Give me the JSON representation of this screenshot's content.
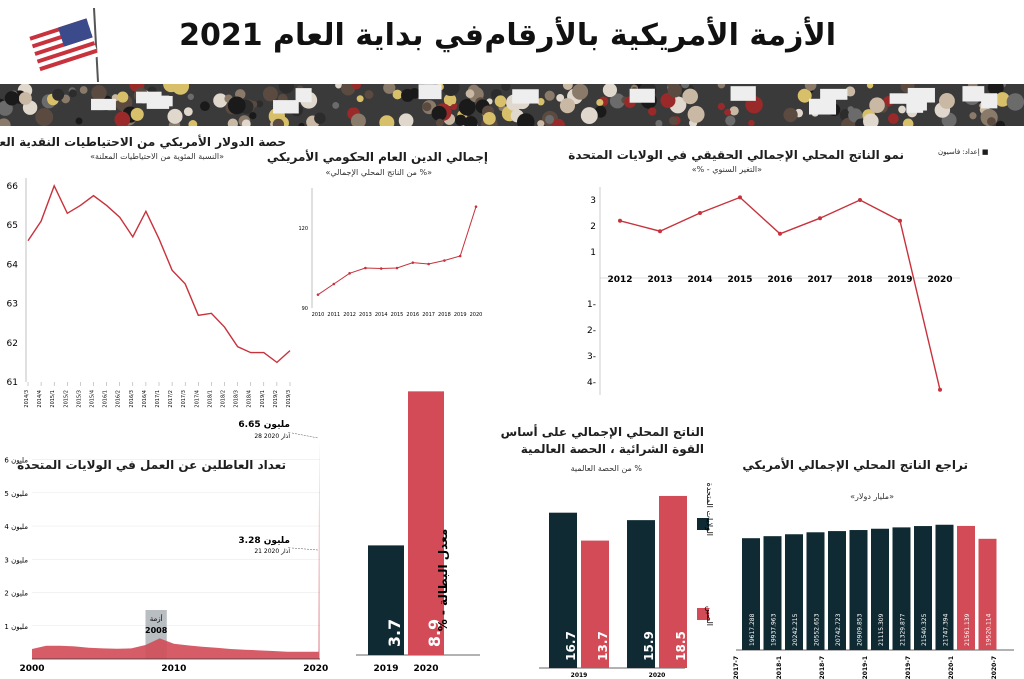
{
  "header": {
    "title_left": "في بداية العام 2021",
    "title_right": "الأزمة الأمريكية بالأرقام",
    "credit": "إعداد: فاسيون"
  },
  "charts": {
    "dollar_reserves": {
      "title": "حصة الدولار الأمريكي من الاحتياطيات النقدية العالمية",
      "subtitle": "«النسبة المئوية من الاحتياطيات المعلنة»"
    },
    "public_debt": {
      "title": "إجمالي الدين العام الحكومي الأمريكي",
      "subtitle": "«% من الناتج المحلي الإجمالي»"
    },
    "gdp_growth": {
      "title": "نمو الناتج المحلي الإجمالي الحقيقي في الولايات المتحدة",
      "subtitle": "«التغير السنوي - %»"
    },
    "unemployment_claims": {
      "title": "تعداد العاطلين عن العمل في الولايات المتحدة",
      "ann_high_value": "6.65 مليون",
      "ann_high_date": "28 آذار 2020",
      "ann_mid_value": "3.28 مليون",
      "ann_mid_date": "21 آذار 2020",
      "crisis_label_1": "أزمة",
      "crisis_label_2": "2008"
    },
    "unemployment_rate": {
      "ylabel": "معدل البطالة - %"
    },
    "ppp_share": {
      "title_1": "الناتج المحلي الإجمالي على أساس",
      "title_2": "القوة الشرائية ، الحصة العالمية",
      "subtitle": "% من الحصة العالمية",
      "legend_us": "الولايات المتحدة",
      "legend_cn": "الصين"
    },
    "gdp_level": {
      "title": "تراجع الناتج المحلي الإجمالي الأمريكي",
      "subtitle": "«مليار دولار»"
    }
  },
  "colors": {
    "dark": "#0f2a33",
    "red": "#d24b57",
    "line": "#c8323c",
    "grid": "#d9d9d9"
  },
  "chart_data": [
    {
      "id": "dollar_reserves",
      "type": "line",
      "title": "حصة الدولار الأمريكي من الاحتياطيات النقدية العالمية",
      "x": [
        "2014/3",
        "2014/4",
        "2015/1",
        "2015/2",
        "2015/3",
        "2015/4",
        "2016/1",
        "2016/2",
        "2016/3",
        "2016/4",
        "2017/1",
        "2017/2",
        "2017/3",
        "2017/4",
        "2018/1",
        "2018/2",
        "2018/3",
        "2018/4",
        "2019/1",
        "2019/2",
        "2019/3"
      ],
      "values": [
        64.6,
        65.1,
        66.0,
        65.3,
        65.5,
        65.75,
        65.5,
        65.2,
        64.7,
        65.35,
        64.65,
        63.85,
        63.5,
        62.7,
        62.75,
        62.4,
        61.9,
        61.75,
        61.75,
        61.5,
        61.8
      ],
      "yticks": [
        61,
        62,
        63,
        64,
        65,
        66
      ],
      "ylim": [
        61,
        66.2
      ]
    },
    {
      "id": "public_debt",
      "type": "line",
      "title": "إجمالي الدين العام الحكومي الأمريكي",
      "x": [
        "2010",
        "2011",
        "2012",
        "2013",
        "2014",
        "2015",
        "2016",
        "2017",
        "2018",
        "2019",
        "2020"
      ],
      "values": [
        95,
        99,
        103,
        105,
        104.8,
        105,
        107,
        106.5,
        107.8,
        109.5,
        128
      ],
      "yticks": [
        90,
        120
      ],
      "ylim": [
        90,
        135
      ]
    },
    {
      "id": "gdp_growth",
      "type": "line",
      "title": "نمو الناتج المحلي الإجمالي الحقيقي في الولايات المتحدة",
      "x": [
        "2012",
        "2013",
        "2014",
        "2015",
        "2016",
        "2017",
        "2018",
        "2019",
        "2020"
      ],
      "values": [
        2.2,
        1.8,
        2.5,
        3.1,
        1.7,
        2.3,
        3.0,
        2.2,
        -4.3
      ],
      "yticks": [
        3,
        2,
        1,
        0,
        -1,
        -2,
        -3,
        -4
      ],
      "ytick_labels": [
        "3",
        "2",
        "1",
        "",
        "1-",
        "2-",
        "3-",
        "4-"
      ],
      "ylim": [
        -4.5,
        3.5
      ]
    },
    {
      "id": "unemployment_claims",
      "type": "area",
      "title": "تعداد العاطلين عن العمل في الولايات المتحدة",
      "x_ticks": [
        "2000",
        "2010",
        "2020"
      ],
      "y_ticks": [
        "1 مليون",
        "2 مليون",
        "3 مليون",
        "4 مليون",
        "5 مليون",
        "6 مليون"
      ],
      "points": [
        [
          2000,
          0.3
        ],
        [
          2001,
          0.4
        ],
        [
          2002,
          0.4
        ],
        [
          2003,
          0.38
        ],
        [
          2004,
          0.34
        ],
        [
          2005,
          0.32
        ],
        [
          2006,
          0.31
        ],
        [
          2007,
          0.32
        ],
        [
          2008,
          0.42
        ],
        [
          2009,
          0.62
        ],
        [
          2010,
          0.46
        ],
        [
          2011,
          0.41
        ],
        [
          2012,
          0.37
        ],
        [
          2013,
          0.34
        ],
        [
          2014,
          0.3
        ],
        [
          2015,
          0.28
        ],
        [
          2016,
          0.26
        ],
        [
          2017,
          0.24
        ],
        [
          2018,
          0.22
        ],
        [
          2019,
          0.22
        ],
        [
          2020.2,
          0.22
        ],
        [
          2020.22,
          3.28
        ],
        [
          2020.24,
          6.65
        ],
        [
          2020.26,
          0.3
        ]
      ]
    },
    {
      "id": "unemployment_rate",
      "type": "bar",
      "ylabel": "معدل البطالة - %",
      "categories": [
        "2019",
        "2020"
      ],
      "values": [
        3.7,
        8.9
      ],
      "value_labels": [
        "3.7",
        "8.9"
      ]
    },
    {
      "id": "ppp_share",
      "type": "bar",
      "title": "الناتج المحلي الإجمالي على أساس القوة الشرائية ، الحصة العالمية",
      "categories": [
        "2019",
        "2020"
      ],
      "series": [
        {
          "name": "الولايات المتحدة",
          "values": [
            16.7,
            15.9
          ],
          "labels": [
            "16.7",
            "15.9"
          ]
        },
        {
          "name": "الصين",
          "values": [
            13.7,
            18.5
          ],
          "labels": [
            "13.7",
            "18.5"
          ]
        }
      ]
    },
    {
      "id": "gdp_level",
      "type": "bar",
      "title": "تراجع الناتج المحلي الإجمالي الأمريكي",
      "x_ticks": [
        "2017-7",
        "2018-1",
        "2018-7",
        "2019-1",
        "2019-7",
        "2020-1",
        "2020-7"
      ],
      "values": [
        19617.288,
        19937.963,
        20242.215,
        20552.653,
        20742.723,
        20909.853,
        21115.309,
        21329.877,
        21540.325,
        21747.394,
        21561.139,
        19520.114
      ],
      "labels": [
        "19617.288",
        "19937.963",
        "20242.215",
        "20552.653",
        "20742.723",
        "20909.853",
        "21115.309",
        "21329.877",
        "21540.325",
        "21747.394",
        "21561.139",
        "19520.114"
      ]
    }
  ]
}
